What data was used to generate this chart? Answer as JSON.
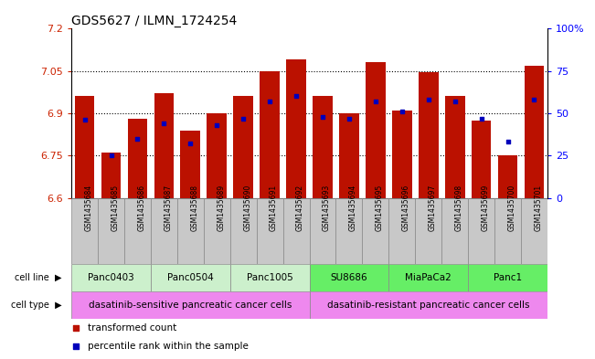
{
  "title": "GDS5627 / ILMN_1724254",
  "samples": [
    "GSM1435684",
    "GSM1435685",
    "GSM1435686",
    "GSM1435687",
    "GSM1435688",
    "GSM1435689",
    "GSM1435690",
    "GSM1435691",
    "GSM1435692",
    "GSM1435693",
    "GSM1435694",
    "GSM1435695",
    "GSM1435696",
    "GSM1435697",
    "GSM1435698",
    "GSM1435699",
    "GSM1435700",
    "GSM1435701"
  ],
  "bar_values": [
    6.96,
    6.76,
    6.88,
    6.97,
    6.84,
    6.9,
    6.96,
    7.05,
    7.09,
    6.96,
    6.9,
    7.08,
    6.91,
    7.045,
    6.96,
    6.875,
    6.75,
    7.07
  ],
  "blue_dot_values": [
    46,
    25,
    35,
    44,
    32,
    43,
    47,
    57,
    60,
    48,
    47,
    57,
    51,
    58,
    57,
    47,
    33,
    58
  ],
  "ymin": 6.6,
  "ymax": 7.2,
  "yticks": [
    6.6,
    6.75,
    6.9,
    7.05,
    7.2
  ],
  "ytick_labels": [
    "6.6",
    "6.75",
    "6.9",
    "7.05",
    "7.2"
  ],
  "right_yticks": [
    0,
    25,
    50,
    75,
    100
  ],
  "right_ytick_labels": [
    "0",
    "25",
    "50",
    "75",
    "100%"
  ],
  "cell_line_groups": [
    {
      "name": "Panc0403",
      "start": 0,
      "end": 2,
      "color": "#ccf0cc"
    },
    {
      "name": "Panc0504",
      "start": 3,
      "end": 5,
      "color": "#ccf0cc"
    },
    {
      "name": "Panc1005",
      "start": 6,
      "end": 8,
      "color": "#ccf0cc"
    },
    {
      "name": "SU8686",
      "start": 9,
      "end": 11,
      "color": "#66ee66"
    },
    {
      "name": "MiaPaCa2",
      "start": 12,
      "end": 14,
      "color": "#66ee66"
    },
    {
      "name": "Panc1",
      "start": 15,
      "end": 17,
      "color": "#66ee66"
    }
  ],
  "cell_type_groups": [
    {
      "label": "dasatinib-sensitive pancreatic cancer cells",
      "start": 0,
      "end": 8,
      "color": "#ee88ee"
    },
    {
      "label": "dasatinib-resistant pancreatic cancer cells",
      "start": 9,
      "end": 17,
      "color": "#ee88ee"
    }
  ],
  "bar_color": "#bb1100",
  "dot_color": "#0000bb",
  "bar_width": 0.75,
  "sample_box_color": "#c8c8c8",
  "legend_items": [
    {
      "label": "transformed count",
      "color": "#bb1100"
    },
    {
      "label": "percentile rank within the sample",
      "color": "#0000bb"
    }
  ]
}
